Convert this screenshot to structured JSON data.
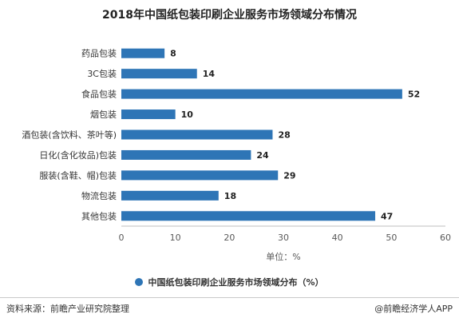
{
  "chart_data": {
    "type": "bar",
    "orientation": "horizontal",
    "title": "2018年中国纸包装印刷企业服务市场领域分布情况",
    "categories": [
      "药品包装",
      "3C包装",
      "食品包装",
      "烟包装",
      "酒包装(含饮料、茶叶等)",
      "日化(含化妆品)包装",
      "服装(含鞋、帽)包装",
      "物流包装",
      "其他包装"
    ],
    "series": [
      {
        "name": "中国纸包装印刷企业服务市场领域分布（%）",
        "values": [
          8,
          14,
          52,
          10,
          28,
          24,
          29,
          18,
          47
        ]
      }
    ],
    "xlabel": "单位：%",
    "xlim": [
      0,
      60
    ],
    "xticks": [
      0,
      10,
      20,
      30,
      40,
      50,
      60
    ],
    "grid": false,
    "legend_position": "bottom",
    "bar_color": "#2e75b6"
  },
  "footer": {
    "source": "资料来源：前瞻产业研究院整理",
    "brand": "@前瞻经济学人APP"
  }
}
